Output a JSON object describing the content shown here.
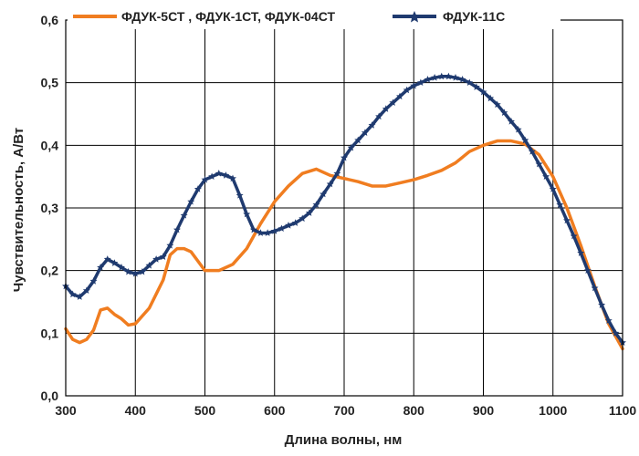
{
  "chart_data": {
    "type": "line",
    "xlabel": "Длина волны, нм",
    "ylabel": "Чувствительность, А/Вт",
    "xlim": [
      300,
      1100
    ],
    "ylim": [
      0,
      0.6
    ],
    "xticks": [
      300,
      400,
      500,
      600,
      700,
      800,
      900,
      1000,
      1100
    ],
    "yticks": [
      0,
      0.1,
      0.2,
      0.3,
      0.4,
      0.5,
      0.6
    ],
    "xtick_labels": [
      "300",
      "400",
      "500",
      "600",
      "700",
      "800",
      "900",
      "1000",
      "1100"
    ],
    "ytick_labels": [
      "0,0",
      "0,1",
      "0,2",
      "0,3",
      "0,4",
      "0,5",
      "0,6"
    ],
    "grid": true,
    "legend_position": "top",
    "series": [
      {
        "name": "ФДУК-5СТ , ФДУК-1СТ, ФДУК-04СТ",
        "color": "#f07d20",
        "marker": "none",
        "points": [
          [
            300,
            0.107
          ],
          [
            310,
            0.09
          ],
          [
            320,
            0.085
          ],
          [
            330,
            0.09
          ],
          [
            340,
            0.105
          ],
          [
            350,
            0.137
          ],
          [
            360,
            0.14
          ],
          [
            370,
            0.13
          ],
          [
            380,
            0.123
          ],
          [
            390,
            0.113
          ],
          [
            400,
            0.115
          ],
          [
            420,
            0.14
          ],
          [
            440,
            0.185
          ],
          [
            450,
            0.225
          ],
          [
            460,
            0.235
          ],
          [
            470,
            0.235
          ],
          [
            480,
            0.23
          ],
          [
            490,
            0.215
          ],
          [
            500,
            0.2
          ],
          [
            520,
            0.2
          ],
          [
            540,
            0.21
          ],
          [
            560,
            0.235
          ],
          [
            580,
            0.275
          ],
          [
            600,
            0.31
          ],
          [
            620,
            0.335
          ],
          [
            640,
            0.355
          ],
          [
            660,
            0.362
          ],
          [
            680,
            0.352
          ],
          [
            700,
            0.347
          ],
          [
            720,
            0.342
          ],
          [
            740,
            0.335
          ],
          [
            760,
            0.335
          ],
          [
            780,
            0.34
          ],
          [
            800,
            0.345
          ],
          [
            820,
            0.352
          ],
          [
            840,
            0.36
          ],
          [
            860,
            0.372
          ],
          [
            880,
            0.39
          ],
          [
            900,
            0.4
          ],
          [
            920,
            0.407
          ],
          [
            940,
            0.407
          ],
          [
            960,
            0.402
          ],
          [
            980,
            0.385
          ],
          [
            1000,
            0.35
          ],
          [
            1020,
            0.3
          ],
          [
            1040,
            0.24
          ],
          [
            1060,
            0.175
          ],
          [
            1080,
            0.115
          ],
          [
            1100,
            0.075
          ]
        ]
      },
      {
        "name": "ФДУК-11С",
        "color": "#1f3a6f",
        "marker": "star",
        "points": [
          [
            300,
            0.175
          ],
          [
            310,
            0.162
          ],
          [
            320,
            0.158
          ],
          [
            330,
            0.168
          ],
          [
            340,
            0.183
          ],
          [
            350,
            0.205
          ],
          [
            360,
            0.218
          ],
          [
            370,
            0.212
          ],
          [
            380,
            0.205
          ],
          [
            390,
            0.198
          ],
          [
            400,
            0.195
          ],
          [
            410,
            0.198
          ],
          [
            420,
            0.208
          ],
          [
            430,
            0.218
          ],
          [
            440,
            0.222
          ],
          [
            450,
            0.24
          ],
          [
            460,
            0.265
          ],
          [
            470,
            0.288
          ],
          [
            480,
            0.31
          ],
          [
            490,
            0.33
          ],
          [
            500,
            0.345
          ],
          [
            510,
            0.35
          ],
          [
            520,
            0.355
          ],
          [
            530,
            0.352
          ],
          [
            540,
            0.347
          ],
          [
            550,
            0.32
          ],
          [
            560,
            0.29
          ],
          [
            570,
            0.265
          ],
          [
            580,
            0.26
          ],
          [
            590,
            0.26
          ],
          [
            600,
            0.263
          ],
          [
            610,
            0.267
          ],
          [
            620,
            0.272
          ],
          [
            630,
            0.276
          ],
          [
            640,
            0.283
          ],
          [
            650,
            0.292
          ],
          [
            660,
            0.305
          ],
          [
            670,
            0.322
          ],
          [
            680,
            0.338
          ],
          [
            690,
            0.355
          ],
          [
            700,
            0.38
          ],
          [
            710,
            0.396
          ],
          [
            720,
            0.408
          ],
          [
            730,
            0.42
          ],
          [
            740,
            0.432
          ],
          [
            750,
            0.446
          ],
          [
            760,
            0.458
          ],
          [
            770,
            0.468
          ],
          [
            780,
            0.478
          ],
          [
            790,
            0.488
          ],
          [
            800,
            0.495
          ],
          [
            810,
            0.5
          ],
          [
            820,
            0.505
          ],
          [
            830,
            0.508
          ],
          [
            840,
            0.51
          ],
          [
            850,
            0.51
          ],
          [
            860,
            0.508
          ],
          [
            870,
            0.505
          ],
          [
            880,
            0.5
          ],
          [
            890,
            0.493
          ],
          [
            900,
            0.485
          ],
          [
            910,
            0.475
          ],
          [
            920,
            0.465
          ],
          [
            930,
            0.452
          ],
          [
            940,
            0.438
          ],
          [
            950,
            0.425
          ],
          [
            960,
            0.408
          ],
          [
            970,
            0.39
          ],
          [
            980,
            0.37
          ],
          [
            990,
            0.35
          ],
          [
            1000,
            0.33
          ],
          [
            1010,
            0.305
          ],
          [
            1020,
            0.28
          ],
          [
            1030,
            0.255
          ],
          [
            1040,
            0.228
          ],
          [
            1050,
            0.2
          ],
          [
            1060,
            0.172
          ],
          [
            1070,
            0.145
          ],
          [
            1080,
            0.12
          ],
          [
            1090,
            0.1
          ],
          [
            1100,
            0.085
          ]
        ]
      }
    ]
  }
}
